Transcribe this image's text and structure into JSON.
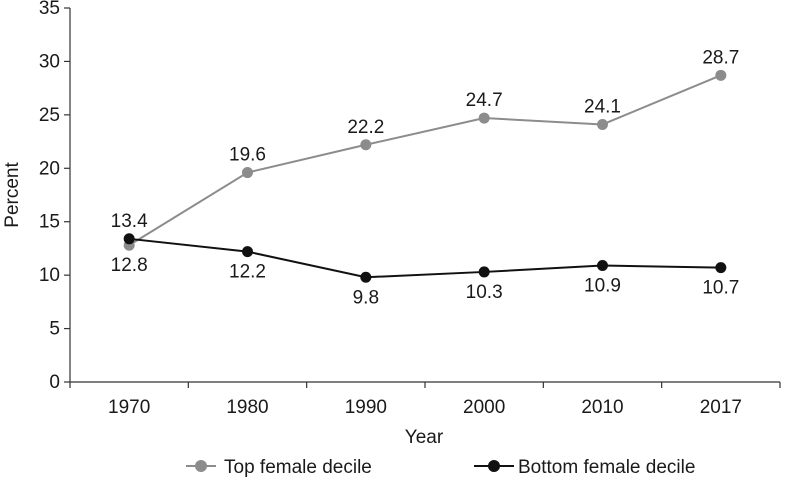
{
  "chart_data": {
    "type": "line",
    "title": "",
    "xlabel": "Year",
    "ylabel": "Percent",
    "categories": [
      "1970",
      "1980",
      "1990",
      "2000",
      "2010",
      "2017"
    ],
    "ylim": [
      0,
      35
    ],
    "yticks": [
      "0",
      "5",
      "10",
      "15",
      "20",
      "25",
      "30",
      "35"
    ],
    "grid": false,
    "legend_position": "bottom",
    "series": [
      {
        "name": "Top female decile",
        "color": "#8c8c8c",
        "values": [
          12.8,
          19.6,
          22.2,
          24.7,
          24.1,
          28.7
        ],
        "labels": [
          "12.8",
          "19.6",
          "22.2",
          "24.7",
          "24.1",
          "28.7"
        ]
      },
      {
        "name": "Bottom female decile",
        "color": "#111111",
        "values": [
          13.4,
          12.2,
          9.8,
          10.3,
          10.9,
          10.7
        ],
        "labels": [
          "13.4",
          "12.2",
          "9.8",
          "10.3",
          "10.9",
          "10.7"
        ]
      }
    ]
  }
}
